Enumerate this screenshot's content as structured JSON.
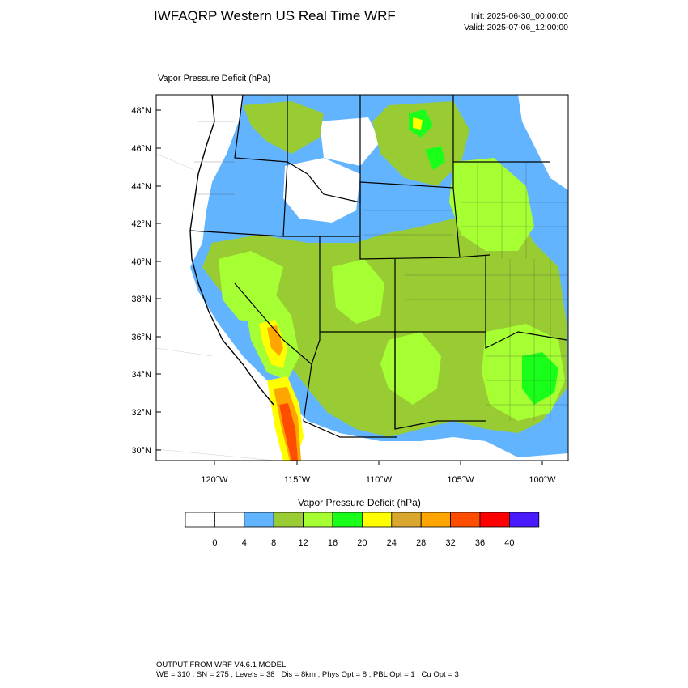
{
  "header": {
    "title": "IWFAQRP Western US Real Time WRF",
    "init": "Init: 2025-06-30_00:00:00",
    "valid": "Valid: 2025-07-06_12:00:00"
  },
  "plot": {
    "field_label": "Vapor Pressure Deficit   (hPa)"
  },
  "axes": {
    "lat_labels": [
      "48°N",
      "46°N",
      "44°N",
      "42°N",
      "40°N",
      "38°N",
      "36°N",
      "34°N",
      "32°N",
      "30°N"
    ],
    "lon_labels": [
      "120°W",
      "115°W",
      "110°W",
      "105°W",
      "100°W"
    ]
  },
  "colorbar": {
    "title": "Vapor Pressure Deficit  (hPa)",
    "tick_labels": [
      "0",
      "4",
      "8",
      "12",
      "16",
      "20",
      "24",
      "28",
      "32",
      "36",
      "40"
    ],
    "colors": [
      "#ffffff",
      "#ffffff",
      "#62b4ff",
      "#99cc33",
      "#a6ff33",
      "#1aff1a",
      "#ffff00",
      "#d9a62e",
      "#ffa500",
      "#ff4d00",
      "#ff0000",
      "#4a1aff"
    ]
  },
  "footer": {
    "line1": "OUTPUT FROM WRF V4.6.1 MODEL",
    "line2": "WE = 310 ; SN = 275 ; Levels = 38 ; Dis = 8km ; Phys Opt = 8 ; PBL Opt = 1 ; Cu Opt = 3"
  }
}
